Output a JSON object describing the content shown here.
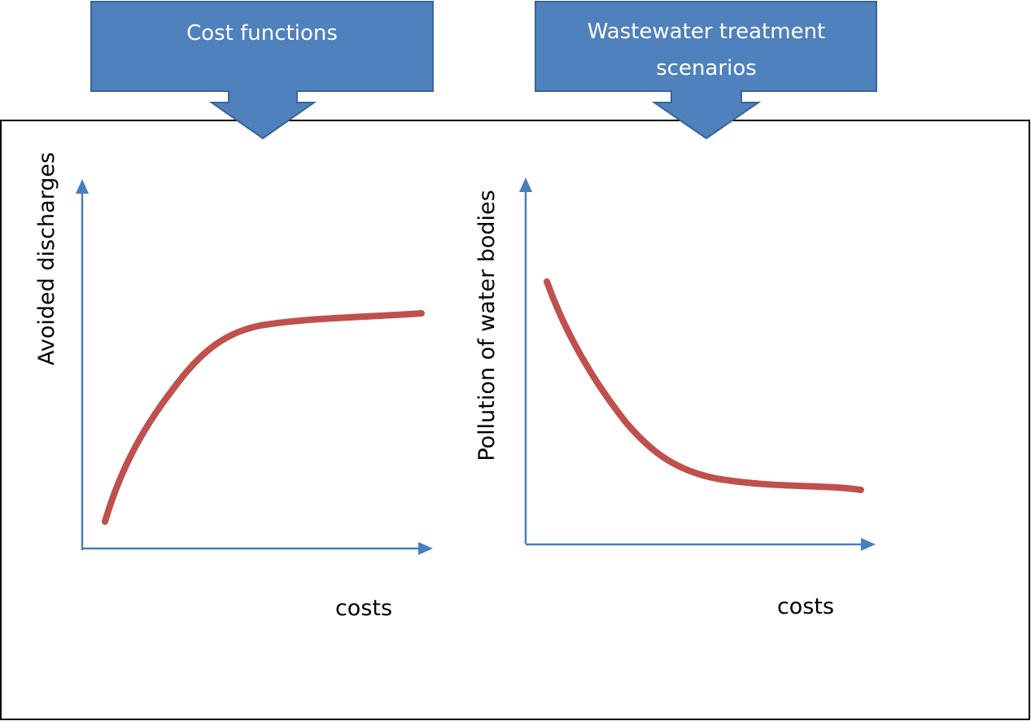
{
  "callouts": {
    "cost_functions": {
      "label": "Cost functions"
    },
    "wastewater": {
      "line1": "Wastewater treatment",
      "line2": "scenarios"
    }
  },
  "left_chart": {
    "ylabel": "Avoided discharges",
    "xlabel": "costs"
  },
  "right_chart": {
    "ylabel": "Pollution of water bodies",
    "xlabel": "costs"
  },
  "colors": {
    "callout_fill": "#4f81bd",
    "axis": "#4a7ebb",
    "curve": "#c0504d"
  }
}
